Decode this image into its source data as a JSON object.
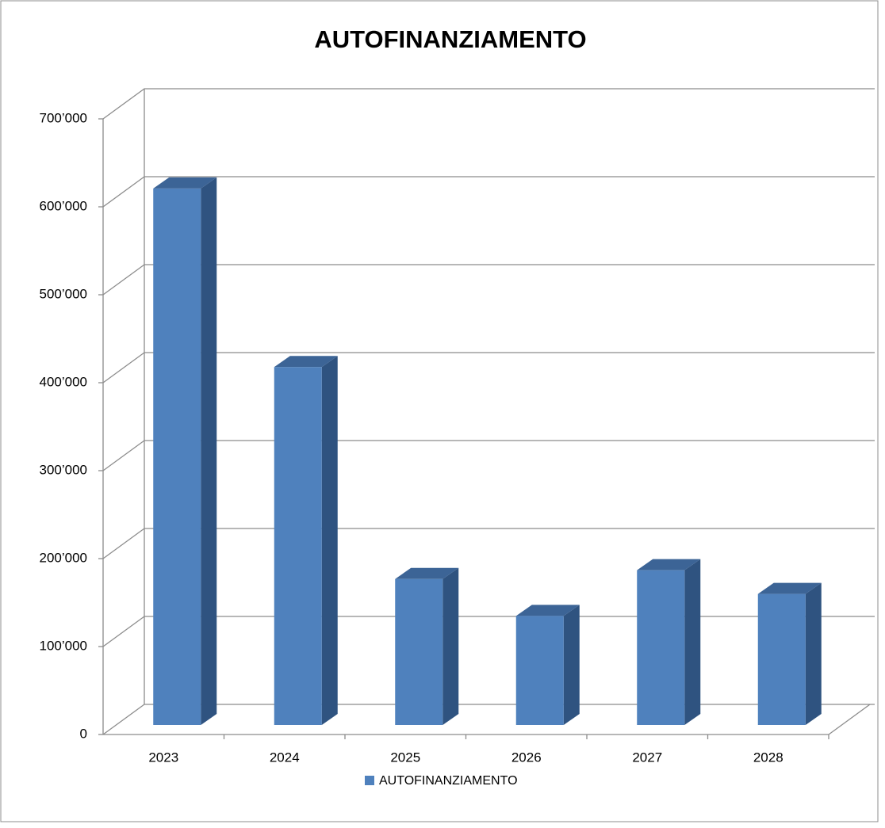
{
  "chart_data": {
    "type": "bar3d",
    "title": "AUTOFINANZIAMENTO",
    "categories": [
      "2023",
      "2024",
      "2025",
      "2026",
      "2027",
      "2028"
    ],
    "series": [
      {
        "name": "AUTOFINANZIAMENTO",
        "color": "#4f81bd",
        "values": [
          610000,
          407000,
          166000,
          124000,
          176000,
          149000
        ]
      }
    ],
    "ylim": [
      0,
      700000
    ],
    "yticks": [
      {
        "value": 0,
        "label": "0"
      },
      {
        "value": 100000,
        "label": "100’000"
      },
      {
        "value": 200000,
        "label": "200’000"
      },
      {
        "value": 300000,
        "label": "300’000"
      },
      {
        "value": 400000,
        "label": "400’000"
      },
      {
        "value": 500000,
        "label": "500’000"
      },
      {
        "value": 600000,
        "label": "600’000"
      },
      {
        "value": 700000,
        "label": "700’000"
      }
    ],
    "grid": true,
    "legend": "bottom"
  }
}
